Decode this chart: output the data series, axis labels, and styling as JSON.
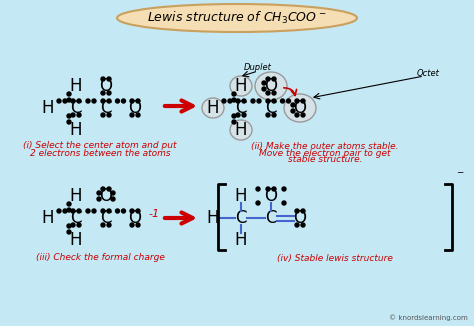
{
  "title": "Lewis structure of CH₃COO⁻",
  "bg_color": "#c5e8f5",
  "title_bg": "#f5deb3",
  "title_border": "#c8a060",
  "red_color": "#cc0000",
  "blue_color": "#4466cc",
  "caption_color": "#cc0000",
  "watermark": "© knordslearning.com",
  "panel_i_caption1": "(i) Select the center atom and put",
  "panel_i_caption2": "2 electrons between the atoms",
  "panel_ii_caption1": "(ii) Make the outer atoms stable.",
  "panel_ii_caption2": "Move the electron pair to get",
  "panel_ii_caption3": "stable structure.",
  "panel_iii_caption": "(iii) Check the formal charge",
  "panel_iv_caption": "(iv) Stable lewis structure",
  "duplet_label": "Duplet",
  "octet_label": "Octet"
}
